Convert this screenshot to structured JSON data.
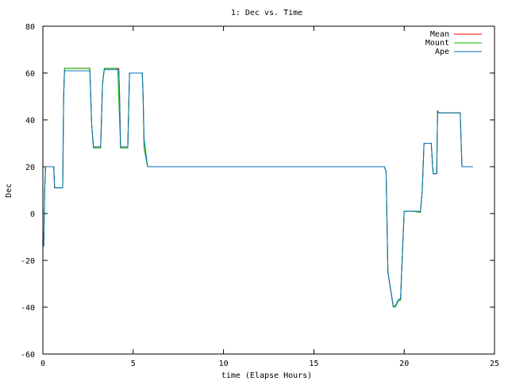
{
  "chart_data": {
    "type": "line",
    "title": "1: Dec vs. Time",
    "xlabel": "time (Elapse Hours)",
    "ylabel": "Dec",
    "xlim": [
      0,
      25
    ],
    "ylim": [
      -60,
      80
    ],
    "xticks": [
      0,
      5,
      10,
      15,
      20,
      25
    ],
    "yticks": [
      -60,
      -40,
      -20,
      0,
      20,
      40,
      60,
      80
    ],
    "grid": false,
    "legend_position": "top-right",
    "series": [
      {
        "name": "Mean",
        "color": "#ff0000",
        "x": [
          0,
          0.05,
          0.1,
          0.15,
          0.2,
          0.6,
          0.65,
          1.1,
          1.15,
          1.2,
          2.6,
          2.7,
          2.8,
          3.2,
          3.3,
          3.4,
          4.2,
          4.25,
          4.3,
          4.7,
          4.75,
          4.8,
          5.5,
          5.55,
          5.6,
          5.8,
          18.9,
          19.0,
          19.1,
          19.4,
          19.5,
          19.7,
          19.8,
          20.0,
          20.5,
          20.9,
          21.0,
          21.1,
          21.5,
          21.6,
          21.8,
          21.85,
          21.9,
          23.1,
          23.2,
          23.8
        ],
        "y": [
          -14,
          -14,
          10,
          20,
          20,
          20,
          11,
          11,
          50,
          62,
          62,
          38,
          28,
          28,
          55,
          62,
          62,
          50,
          28,
          28,
          45,
          60,
          60,
          50,
          28,
          20,
          20,
          18,
          -25,
          -40,
          -40,
          -37,
          -37,
          1,
          1,
          0.5,
          10,
          30,
          30,
          17,
          17,
          44,
          43,
          43,
          20,
          20
        ]
      },
      {
        "name": "Mount",
        "color": "#00c000",
        "x": [
          0,
          0.05,
          0.1,
          0.15,
          0.2,
          0.6,
          0.65,
          1.1,
          1.15,
          1.2,
          2.6,
          2.7,
          2.8,
          3.2,
          3.3,
          3.4,
          4.1,
          4.15,
          4.3,
          4.7,
          4.75,
          4.8,
          5.5,
          5.55,
          5.6,
          5.8,
          18.9,
          19.0,
          19.1,
          19.4,
          19.5,
          19.7,
          19.8,
          20.0,
          20.5,
          20.9,
          21.0,
          21.1,
          21.5,
          21.6,
          21.8,
          21.85,
          21.9,
          23.1,
          23.2,
          23.8
        ],
        "y": [
          -14,
          -14,
          10,
          20,
          20,
          20,
          11,
          11,
          50,
          62,
          62,
          38,
          28,
          28,
          55,
          62,
          62,
          60,
          28,
          28,
          45,
          60,
          60,
          50,
          28,
          20,
          20,
          18,
          -25,
          -40,
          -40,
          -37,
          -37,
          1,
          1,
          0.5,
          10,
          30,
          30,
          17,
          17,
          44,
          43,
          43,
          20,
          20
        ]
      },
      {
        "name": "Ape",
        "color": "#0070c0",
        "x": [
          0,
          0.05,
          0.1,
          0.15,
          0.2,
          0.6,
          0.65,
          1.1,
          1.15,
          1.2,
          2.6,
          2.7,
          2.8,
          3.2,
          3.3,
          3.4,
          4.2,
          4.25,
          4.3,
          4.7,
          4.75,
          4.8,
          5.5,
          5.55,
          5.6,
          5.8,
          18.9,
          19.0,
          19.1,
          19.4,
          19.5,
          19.7,
          19.8,
          20.0,
          20.5,
          20.9,
          21.0,
          21.1,
          21.5,
          21.6,
          21.8,
          21.85,
          21.9,
          23.1,
          23.2,
          23.8
        ],
        "y": [
          -14,
          -14,
          10,
          20,
          20,
          20,
          11,
          11,
          50,
          61,
          61,
          38,
          28.5,
          28.5,
          55,
          61.5,
          61.5,
          50,
          28.5,
          28.5,
          45,
          60,
          60,
          50,
          32,
          20,
          20,
          18,
          -25,
          -39.5,
          -39.5,
          -36.5,
          -36.5,
          1,
          1,
          1,
          10,
          30,
          30,
          17,
          17,
          44,
          43,
          43,
          20,
          20
        ]
      }
    ]
  }
}
